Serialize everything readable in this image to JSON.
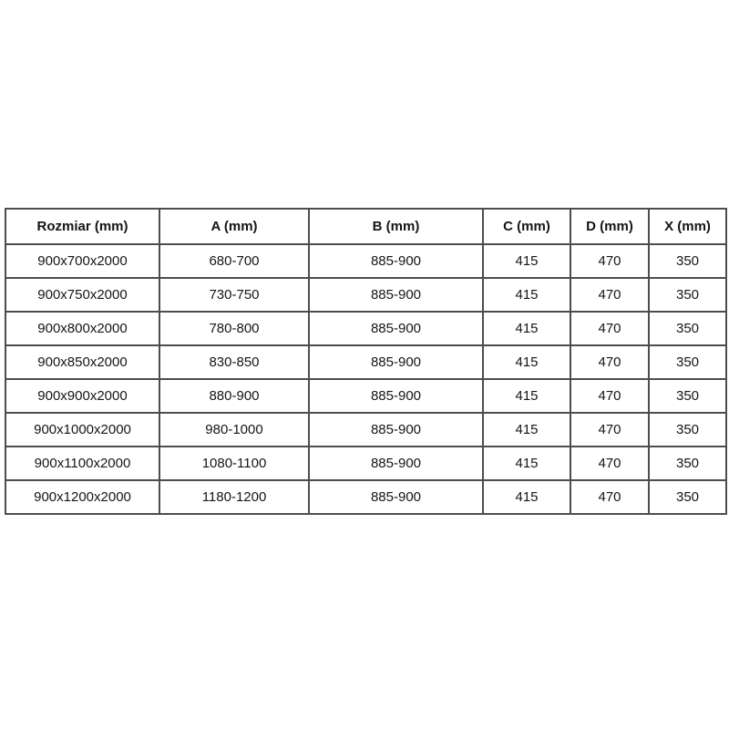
{
  "page": {
    "background_color": "#ffffff",
    "text_color": "#151515",
    "table_border_color": "#4d4d4d"
  },
  "table": {
    "headers": [
      "Rozmiar (mm)",
      "A (mm)",
      "B (mm)",
      "C (mm)",
      "D (mm)",
      "X (mm)"
    ],
    "rows": [
      [
        "900x700x2000",
        "680-700",
        "885-900",
        "415",
        "470",
        "350"
      ],
      [
        "900x750x2000",
        "730-750",
        "885-900",
        "415",
        "470",
        "350"
      ],
      [
        "900x800x2000",
        "780-800",
        "885-900",
        "415",
        "470",
        "350"
      ],
      [
        "900x850x2000",
        "830-850",
        "885-900",
        "415",
        "470",
        "350"
      ],
      [
        "900x900x2000",
        "880-900",
        "885-900",
        "415",
        "470",
        "350"
      ],
      [
        "900x1000x2000",
        "980-1000",
        "885-900",
        "415",
        "470",
        "350"
      ],
      [
        "900x1100x2000",
        "1080-1100",
        "885-900",
        "415",
        "470",
        "350"
      ],
      [
        "900x1200x2000",
        "1180-1200",
        "885-900",
        "415",
        "470",
        "350"
      ]
    ]
  }
}
